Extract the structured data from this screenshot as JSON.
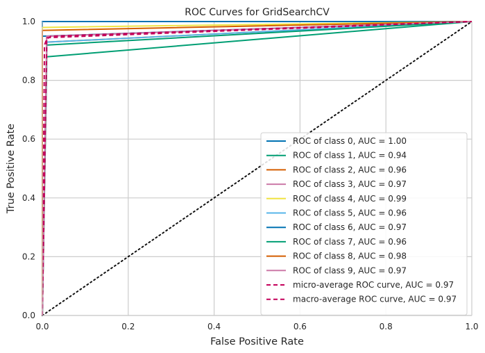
{
  "chart_data": {
    "type": "line",
    "title": "ROC Curves for GridSearchCV",
    "xlabel": "False Positive Rate",
    "ylabel": "True Positive Rate",
    "xlim": [
      0,
      1
    ],
    "ylim": [
      0,
      1
    ],
    "xticks": [
      "0.0",
      "0.2",
      "0.4",
      "0.6",
      "0.8",
      "1.0"
    ],
    "yticks": [
      "0.0",
      "0.2",
      "0.4",
      "0.6",
      "0.8",
      "1.0"
    ],
    "grid": true,
    "legend_position": "lower-right",
    "series": [
      {
        "name": "ROC of class 0, AUC = 1.00",
        "color": "#0072B2",
        "dash": "solid",
        "x": [
          0,
          0.0,
          0.0,
          1.0
        ],
        "y": [
          0,
          0.99,
          1.0,
          1.0
        ]
      },
      {
        "name": "ROC of class 1, AUC = 0.94",
        "color": "#009E73",
        "dash": "solid",
        "x": [
          0,
          0.01,
          0.01,
          1.0
        ],
        "y": [
          0,
          0.84,
          0.88,
          1.0
        ]
      },
      {
        "name": "ROC of class 2, AUC = 0.96",
        "color": "#D55E00",
        "dash": "solid",
        "x": [
          0,
          0.01,
          0.01,
          1.0
        ],
        "y": [
          0,
          0.88,
          0.93,
          1.0
        ]
      },
      {
        "name": "ROC of class 3, AUC = 0.97",
        "color": "#CC79A7",
        "dash": "solid",
        "x": [
          0,
          0.01,
          0.01,
          1.0
        ],
        "y": [
          0,
          0.92,
          0.95,
          1.0
        ]
      },
      {
        "name": "ROC of class 4, AUC = 0.99",
        "color": "#F0E442",
        "dash": "solid",
        "x": [
          0,
          0.0,
          0.0,
          1.0
        ],
        "y": [
          0,
          0.96,
          0.98,
          1.0
        ]
      },
      {
        "name": "ROC of class 5, AUC = 0.96",
        "color": "#56B4E9",
        "dash": "solid",
        "x": [
          0,
          0.01,
          0.01,
          1.0
        ],
        "y": [
          0,
          0.9,
          0.93,
          1.0
        ]
      },
      {
        "name": "ROC of class 6, AUC = 0.97",
        "color": "#0072B2",
        "dash": "solid",
        "x": [
          0,
          0.0,
          0.0,
          1.0
        ],
        "y": [
          0,
          0.93,
          0.95,
          1.0
        ]
      },
      {
        "name": "ROC of class 7, AUC = 0.96",
        "color": "#009E73",
        "dash": "solid",
        "x": [
          0,
          0.01,
          0.01,
          1.0
        ],
        "y": [
          0,
          0.9,
          0.92,
          1.0
        ]
      },
      {
        "name": "ROC of class 8, AUC = 0.98",
        "color": "#D55E00",
        "dash": "solid",
        "x": [
          0,
          0.0,
          0.0,
          1.0
        ],
        "y": [
          0,
          0.95,
          0.97,
          1.0
        ]
      },
      {
        "name": "ROC of class 9, AUC = 0.97",
        "color": "#CC79A7",
        "dash": "solid",
        "x": [
          0,
          0.01,
          0.01,
          1.0
        ],
        "y": [
          0,
          0.92,
          0.95,
          1.0
        ]
      },
      {
        "name": "micro-average ROC curve, AUC = 0.97",
        "color": "#C4005A",
        "dash": "dashed",
        "x": [
          0,
          0.01,
          0.01,
          1.0
        ],
        "y": [
          0,
          0.9,
          0.945,
          1.0
        ]
      },
      {
        "name": "macro-average ROC curve, AUC = 0.97",
        "color": "#C4005A",
        "dash": "dashed",
        "x": [
          0,
          0.005,
          0.01,
          0.02,
          1.0
        ],
        "y": [
          0,
          0.92,
          0.94,
          0.95,
          1.0
        ]
      }
    ],
    "reference_line": {
      "x": [
        0,
        1
      ],
      "y": [
        0,
        1
      ],
      "color": "#111111",
      "dash": "dotted"
    }
  }
}
